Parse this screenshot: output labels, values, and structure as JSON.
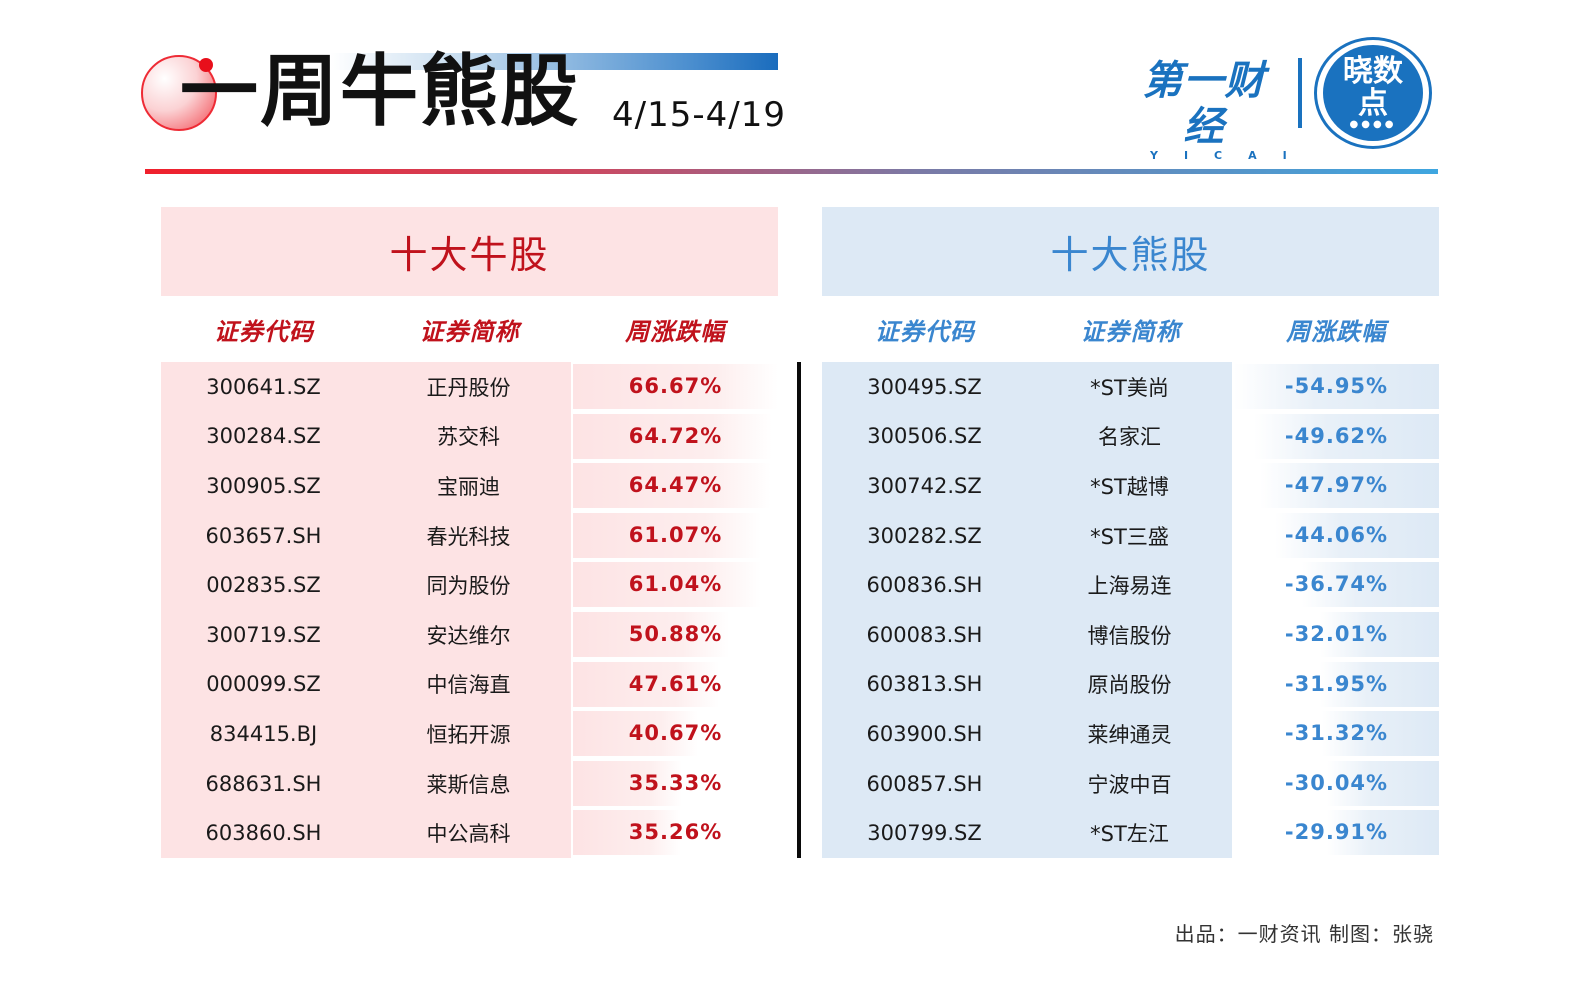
{
  "header": {
    "title": "一周牛熊股",
    "date_range": "4/15-4/19",
    "brand_name": "第一财经",
    "brand_sub": "YICAI",
    "badge_text_line1": "晓数",
    "badge_text_line2": "点",
    "badge_dots": "●●●●"
  },
  "colors": {
    "bull_accent": "#c0121c",
    "bull_bg": "#fde3e4",
    "bear_accent": "#3a86cf",
    "bear_bg": "#dde9f5",
    "brand_blue": "#1a72bf"
  },
  "bull": {
    "title": "十大牛股",
    "columns": [
      "证券代码",
      "证券简称",
      "周涨跌幅"
    ],
    "rows": [
      {
        "code": "300641.SZ",
        "name": "正丹股份",
        "change": "66.67%"
      },
      {
        "code": "300284.SZ",
        "name": "苏交科",
        "change": "64.72%"
      },
      {
        "code": "300905.SZ",
        "name": "宝丽迪",
        "change": "64.47%"
      },
      {
        "code": "603657.SH",
        "name": "春光科技",
        "change": "61.07%"
      },
      {
        "code": "002835.SZ",
        "name": "同为股份",
        "change": "61.04%"
      },
      {
        "code": "300719.SZ",
        "name": "安达维尔",
        "change": "50.88%"
      },
      {
        "code": "000099.SZ",
        "name": "中信海直",
        "change": "47.61%"
      },
      {
        "code": "834415.BJ",
        "name": "恒拓开源",
        "change": "40.67%"
      },
      {
        "code": "688631.SH",
        "name": "莱斯信息",
        "change": "35.33%"
      },
      {
        "code": "603860.SH",
        "name": "中公高科",
        "change": "35.26%"
      }
    ]
  },
  "bear": {
    "title": "十大熊股",
    "columns": [
      "证券代码",
      "证券简称",
      "周涨跌幅"
    ],
    "rows": [
      {
        "code": "300495.SZ",
        "name": "*ST美尚",
        "change": "-54.95%"
      },
      {
        "code": "300506.SZ",
        "name": "名家汇",
        "change": "-49.62%"
      },
      {
        "code": "300742.SZ",
        "name": "*ST越博",
        "change": "-47.97%"
      },
      {
        "code": "300282.SZ",
        "name": "*ST三盛",
        "change": "-44.06%"
      },
      {
        "code": "600836.SH",
        "name": "上海易连",
        "change": "-36.74%"
      },
      {
        "code": "600083.SH",
        "name": "博信股份",
        "change": "-32.01%"
      },
      {
        "code": "603813.SH",
        "name": "原尚股份",
        "change": "-31.95%"
      },
      {
        "code": "603900.SH",
        "name": "莱绅通灵",
        "change": "-31.32%"
      },
      {
        "code": "600857.SH",
        "name": "宁波中百",
        "change": "-30.04%"
      },
      {
        "code": "300799.SZ",
        "name": "*ST左江",
        "change": "-29.91%"
      }
    ]
  },
  "footer": {
    "credit": "出品：一财资讯  制图：张骁"
  },
  "chart_data": [
    {
      "type": "table",
      "title": "十大牛股",
      "columns": [
        "证券代码",
        "证券简称",
        "周涨跌幅"
      ],
      "categories": [
        "正丹股份",
        "苏交科",
        "宝丽迪",
        "春光科技",
        "同为股份",
        "安达维尔",
        "中信海直",
        "恒拓开源",
        "莱斯信息",
        "中公高科"
      ],
      "codes": [
        "300641.SZ",
        "300284.SZ",
        "300905.SZ",
        "603657.SH",
        "002835.SZ",
        "300719.SZ",
        "000099.SZ",
        "834415.BJ",
        "688631.SH",
        "603860.SH"
      ],
      "values": [
        66.67,
        64.72,
        64.47,
        61.07,
        61.04,
        50.88,
        47.61,
        40.67,
        35.33,
        35.26
      ],
      "unit": "%"
    },
    {
      "type": "table",
      "title": "十大熊股",
      "columns": [
        "证券代码",
        "证券简称",
        "周涨跌幅"
      ],
      "categories": [
        "*ST美尚",
        "名家汇",
        "*ST越博",
        "*ST三盛",
        "上海易连",
        "博信股份",
        "原尚股份",
        "莱绅通灵",
        "宁波中百",
        "*ST左江"
      ],
      "codes": [
        "300495.SZ",
        "300506.SZ",
        "300742.SZ",
        "300282.SZ",
        "600836.SH",
        "600083.SH",
        "603813.SH",
        "603900.SH",
        "600857.SH",
        "300799.SZ"
      ],
      "values": [
        -54.95,
        -49.62,
        -47.97,
        -44.06,
        -36.74,
        -32.01,
        -31.95,
        -31.32,
        -30.04,
        -29.91
      ],
      "unit": "%"
    }
  ]
}
